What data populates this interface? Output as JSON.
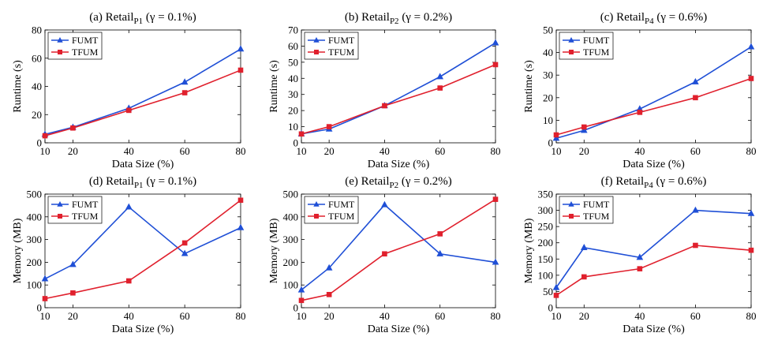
{
  "colors": {
    "FUMT": "#1f4fd6",
    "TFUM": "#e0202d"
  },
  "chart_data": [
    {
      "type": "line",
      "title": {
        "prefix": "(a) Retail",
        "sub": "P1",
        "suffix": " (γ = 0.1%)"
      },
      "xlabel": "Data Size (%)",
      "ylabel": "Runtime (s)",
      "x": [
        10,
        20,
        40,
        60,
        80
      ],
      "xlim": [
        10,
        80
      ],
      "ylim": [
        0,
        80
      ],
      "yticks": [
        0,
        20,
        40,
        60,
        80
      ],
      "legend": "top-left",
      "series": [
        {
          "name": "FUMT",
          "marker": "triangle",
          "values": [
            6,
            11,
            24.5,
            43,
            66.5
          ]
        },
        {
          "name": "TFUM",
          "marker": "square",
          "values": [
            5,
            10.5,
            23,
            35.5,
            51.5
          ]
        }
      ]
    },
    {
      "type": "line",
      "title": {
        "prefix": "(b) Retail",
        "sub": "P2",
        "suffix": " (γ = 0.2%)"
      },
      "xlabel": "Data Size (%)",
      "ylabel": "Runtime (s)",
      "x": [
        10,
        20,
        40,
        60,
        80
      ],
      "xlim": [
        10,
        80
      ],
      "ylim": [
        0,
        70
      ],
      "yticks": [
        0,
        10,
        20,
        30,
        40,
        50,
        60,
        70
      ],
      "legend": "top-left",
      "series": [
        {
          "name": "FUMT",
          "marker": "triangle",
          "values": [
            5.5,
            8.5,
            23,
            41,
            62
          ]
        },
        {
          "name": "TFUM",
          "marker": "square",
          "values": [
            5.5,
            10,
            23,
            34,
            48.5
          ]
        }
      ]
    },
    {
      "type": "line",
      "title": {
        "prefix": "(c) Retail",
        "sub": "P4",
        "suffix": " (γ = 0.6%)"
      },
      "xlabel": "Data Size (%)",
      "ylabel": "Runtime (s)",
      "x": [
        10,
        20,
        40,
        60,
        80
      ],
      "xlim": [
        10,
        80
      ],
      "ylim": [
        0,
        50
      ],
      "yticks": [
        0,
        10,
        20,
        30,
        40,
        50
      ],
      "legend": "top-left",
      "series": [
        {
          "name": "FUMT",
          "marker": "triangle",
          "values": [
            2,
            5.5,
            15,
            27,
            42.5
          ]
        },
        {
          "name": "TFUM",
          "marker": "square",
          "values": [
            3.5,
            7,
            13.5,
            20,
            28.5
          ]
        }
      ]
    },
    {
      "type": "line",
      "title": {
        "prefix": "(d) Retail",
        "sub": "P1",
        "suffix": " (γ = 0.1%)"
      },
      "xlabel": "Data Size (%)",
      "ylabel": "Memory (MB)",
      "x": [
        10,
        20,
        40,
        60,
        80
      ],
      "xlim": [
        10,
        80
      ],
      "ylim": [
        0,
        500
      ],
      "yticks": [
        0,
        100,
        200,
        300,
        400,
        500
      ],
      "legend": "top-left",
      "series": [
        {
          "name": "FUMT",
          "marker": "triangle",
          "values": [
            127,
            190,
            443,
            238,
            352
          ]
        },
        {
          "name": "TFUM",
          "marker": "square",
          "values": [
            40,
            65,
            118,
            285,
            473
          ]
        }
      ]
    },
    {
      "type": "line",
      "title": {
        "prefix": "(e) Retail",
        "sub": "P2",
        "suffix": " (γ = 0.2%)"
      },
      "xlabel": "Data Size (%)",
      "ylabel": "Memory (MB)",
      "x": [
        10,
        20,
        40,
        60,
        80
      ],
      "xlim": [
        10,
        80
      ],
      "ylim": [
        0,
        500
      ],
      "yticks": [
        0,
        100,
        200,
        300,
        400,
        500
      ],
      "legend": "top-left",
      "series": [
        {
          "name": "FUMT",
          "marker": "triangle",
          "values": [
            78,
            175,
            453,
            237,
            200
          ]
        },
        {
          "name": "TFUM",
          "marker": "square",
          "values": [
            32,
            58,
            237,
            325,
            477
          ]
        }
      ]
    },
    {
      "type": "line",
      "title": {
        "prefix": "(f) Retail",
        "sub": "P4",
        "suffix": " (γ = 0.6%)"
      },
      "xlabel": "Data Size (%)",
      "ylabel": "Memory (MB)",
      "x": [
        10,
        20,
        40,
        60,
        80
      ],
      "xlim": [
        10,
        80
      ],
      "ylim": [
        0,
        350
      ],
      "yticks": [
        0,
        50,
        100,
        150,
        200,
        250,
        300,
        350
      ],
      "legend": "top-left",
      "series": [
        {
          "name": "FUMT",
          "marker": "triangle",
          "values": [
            62,
            185,
            155,
            300,
            290
          ]
        },
        {
          "name": "TFUM",
          "marker": "square",
          "values": [
            38,
            95,
            120,
            192,
            177
          ]
        }
      ]
    }
  ]
}
